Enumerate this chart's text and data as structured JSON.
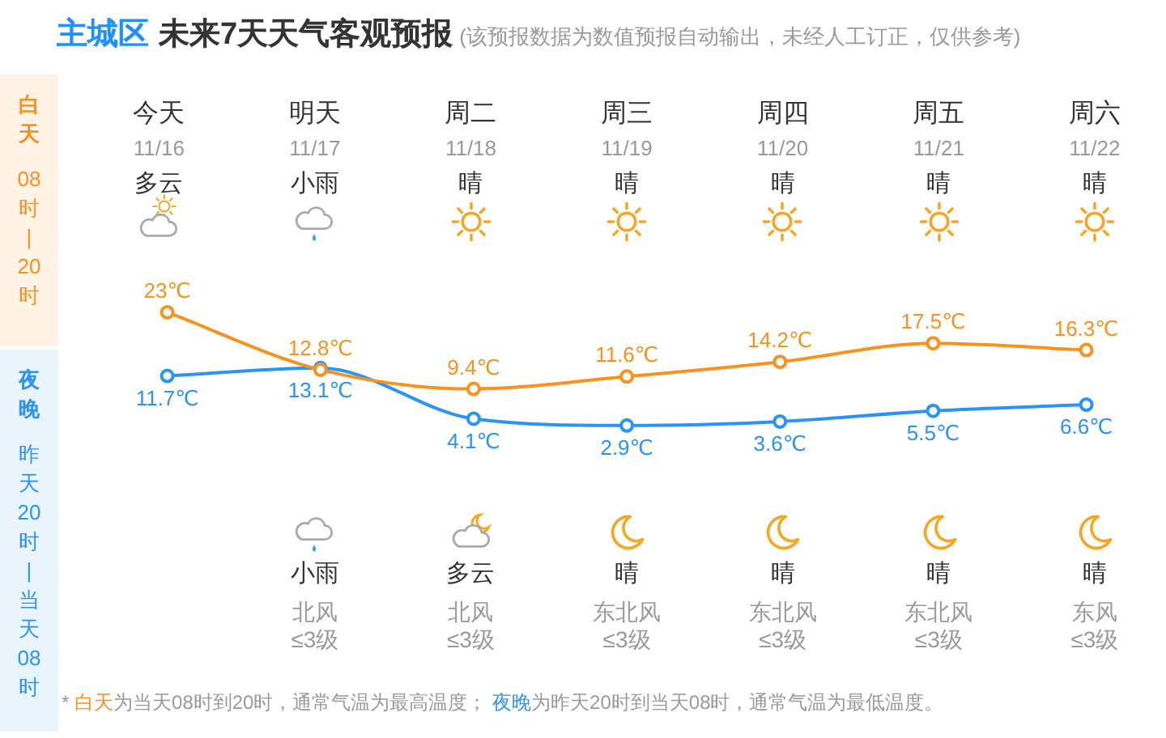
{
  "chart_data": {
    "type": "line",
    "title": "主城区 未来7天天气客观预报",
    "subtitle": "(该预报数据为数值预报自动输出，未经人工订正，仅供参考)",
    "categories": [
      "今天",
      "明天",
      "周二",
      "周三",
      "周四",
      "周五",
      "周六"
    ],
    "series": [
      {
        "name": "白天",
        "color": "#f7921e",
        "values": [
          23,
          12.8,
          9.4,
          11.6,
          14.2,
          17.5,
          16.3
        ],
        "value_labels": [
          "23℃",
          "12.8℃",
          "9.4℃",
          "11.6℃",
          "14.2℃",
          "17.5℃",
          "16.3℃"
        ]
      },
      {
        "name": "夜晚",
        "color": "#2a93f5",
        "values": [
          11.7,
          13.1,
          4.1,
          2.9,
          3.6,
          5.5,
          6.6
        ],
        "value_labels": [
          "11.7℃",
          "13.1℃",
          "4.1℃",
          "2.9℃",
          "3.6℃",
          "5.5℃",
          "6.6℃"
        ]
      }
    ],
    "marker": "circle",
    "legend": "left",
    "annotations": [
      "08时|20时",
      "昨天20时|当天08时",
      "* 白天为当天08时到20时，通常气温为最高温度； 夜晚为昨天20时到当天08时，通常气温为最低温度。",
      "11/16",
      "11/17",
      "11/18",
      "11/19",
      "11/20",
      "11/21",
      "11/22",
      "多云",
      "小雨",
      "晴",
      "晴",
      "晴",
      "晴",
      "晴",
      "小雨",
      "多云",
      "晴",
      "晴",
      "晴",
      "晴",
      "北风\n≤3级",
      "北风\n≤3级",
      "东北风\n≤3级",
      "东北风\n≤3级",
      "东北风\n≤3级",
      "东风\n≤3级"
    ]
  }
}
